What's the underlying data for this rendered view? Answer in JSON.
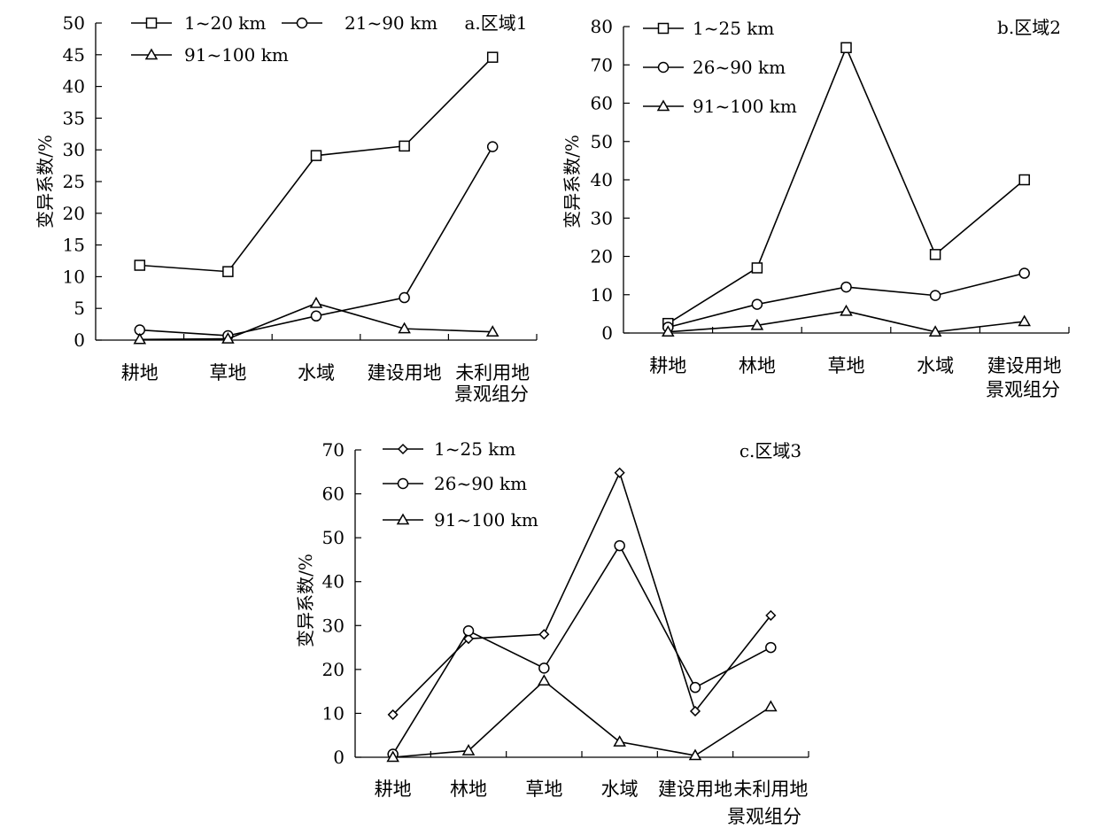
{
  "chart_data": [
    {
      "type": "line",
      "panel_label": "a.区域1",
      "ylabel": "变异系数/%",
      "xlabel": "景观组分",
      "categories": [
        "耕地",
        "草地",
        "水域",
        "建设用地",
        "未利用地"
      ],
      "ylim": [
        0,
        50
      ],
      "yticks": [
        0,
        5,
        10,
        15,
        20,
        25,
        30,
        35,
        40,
        45,
        50
      ],
      "legend_position": "top-left",
      "series": [
        {
          "name": "1~20 km",
          "marker": "square",
          "values": [
            11.8,
            10.8,
            29.1,
            30.6,
            44.6
          ]
        },
        {
          "name": "21~90 km",
          "marker": "circle",
          "values": [
            1.6,
            0.7,
            3.8,
            6.7,
            30.5
          ]
        },
        {
          "name": "91~100 km",
          "marker": "triangle",
          "values": [
            0.1,
            0.2,
            5.8,
            1.8,
            1.3
          ]
        }
      ]
    },
    {
      "type": "line",
      "panel_label": "b.区域2",
      "ylabel": "变异系数/%",
      "xlabel": "景观组分",
      "categories": [
        "耕地",
        "林地",
        "草地",
        "水域",
        "建设用地"
      ],
      "ylim": [
        0,
        80
      ],
      "yticks": [
        0,
        10,
        20,
        30,
        40,
        50,
        60,
        70,
        80
      ],
      "legend_position": "top-left",
      "series": [
        {
          "name": "1~25 km",
          "marker": "square",
          "values": [
            2.5,
            17.0,
            74.5,
            20.5,
            40.0
          ]
        },
        {
          "name": "26~90 km",
          "marker": "circle",
          "values": [
            1.5,
            7.5,
            12.0,
            9.8,
            15.6
          ]
        },
        {
          "name": "91~100 km",
          "marker": "triangle",
          "values": [
            0.3,
            2.0,
            5.7,
            0.3,
            3.0
          ]
        }
      ]
    },
    {
      "type": "line",
      "panel_label": "c.区域3",
      "ylabel": "变异系数/%",
      "xlabel": "景观组分",
      "categories": [
        "耕地",
        "林地",
        "草地",
        "水域",
        "建设用地",
        "未利用地"
      ],
      "ylim": [
        0,
        70
      ],
      "yticks": [
        0,
        10,
        20,
        30,
        40,
        50,
        60,
        70
      ],
      "legend_position": "top-left",
      "series": [
        {
          "name": "1~25 km",
          "marker": "diamond",
          "values": [
            9.7,
            27.0,
            28.0,
            64.8,
            10.5,
            32.3
          ]
        },
        {
          "name": "26~90 km",
          "marker": "circle",
          "values": [
            0.7,
            28.8,
            20.3,
            48.2,
            15.9,
            25.0
          ]
        },
        {
          "name": "91~100 km",
          "marker": "triangle",
          "values": [
            0.0,
            1.5,
            17.4,
            3.5,
            0.4,
            11.5
          ]
        }
      ]
    }
  ]
}
